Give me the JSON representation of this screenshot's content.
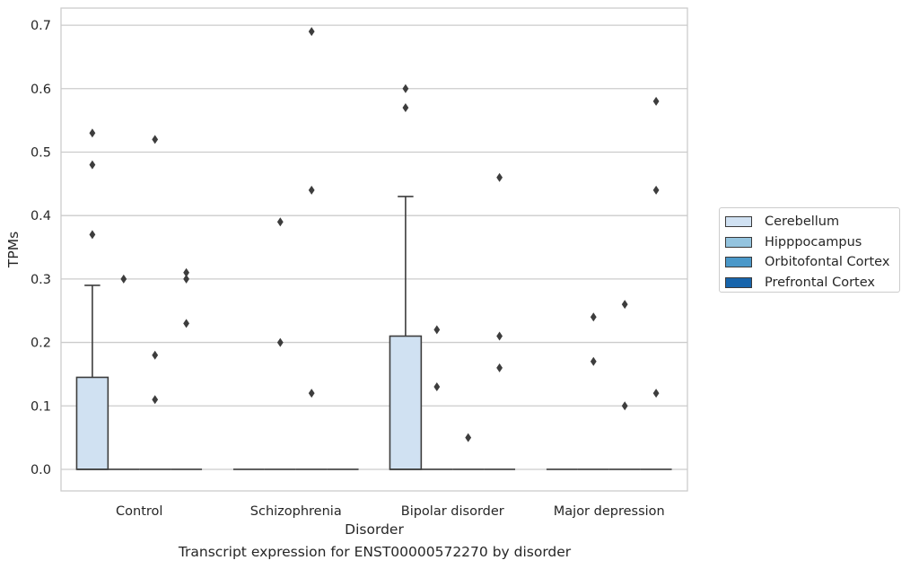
{
  "chart_data": {
    "type": "box",
    "title": "Transcript expression for ENST00000572270 by disorder",
    "xlabel": "Disorder",
    "ylabel": "TPMs",
    "ylim": [
      -0.034,
      0.727
    ],
    "yticks": [
      0.0,
      0.1,
      0.2,
      0.3,
      0.4,
      0.5,
      0.6,
      0.7
    ],
    "ytick_labels": [
      "0.0",
      "0.1",
      "0.2",
      "0.3",
      "0.4",
      "0.5",
      "0.6",
      "0.7"
    ],
    "grid": "horizontal",
    "legend_position": "right",
    "categories": [
      "Control",
      "Schizophrenia",
      "Bipolar disorder",
      "Major depression"
    ],
    "series": [
      {
        "name": "Cerebellum",
        "color": "#d0e1f2",
        "boxes": [
          {
            "q1": 0.0,
            "median": 0.0,
            "q3": 0.145,
            "whisker_low": 0.0,
            "whisker_high": 0.29,
            "outliers": [
              0.37,
              0.48,
              0.53
            ]
          },
          {
            "q1": 0.0,
            "median": 0.0,
            "q3": 0.0,
            "whisker_low": 0.0,
            "whisker_high": 0.0,
            "outliers": []
          },
          {
            "q1": 0.0,
            "median": 0.0,
            "q3": 0.21,
            "whisker_low": 0.0,
            "whisker_high": 0.43,
            "outliers": [
              0.57,
              0.6
            ]
          },
          {
            "q1": 0.0,
            "median": 0.0,
            "q3": 0.0,
            "whisker_low": 0.0,
            "whisker_high": 0.0,
            "outliers": []
          }
        ]
      },
      {
        "name": "Hipppocampus",
        "color": "#94c4df",
        "boxes": [
          {
            "q1": 0.0,
            "median": 0.0,
            "q3": 0.0,
            "whisker_low": 0.0,
            "whisker_high": 0.0,
            "outliers": [
              0.3
            ]
          },
          {
            "q1": 0.0,
            "median": 0.0,
            "q3": 0.0,
            "whisker_low": 0.0,
            "whisker_high": 0.0,
            "outliers": [
              0.2,
              0.39
            ]
          },
          {
            "q1": 0.0,
            "median": 0.0,
            "q3": 0.0,
            "whisker_low": 0.0,
            "whisker_high": 0.0,
            "outliers": [
              0.13,
              0.22
            ]
          },
          {
            "q1": 0.0,
            "median": 0.0,
            "q3": 0.0,
            "whisker_low": 0.0,
            "whisker_high": 0.0,
            "outliers": [
              0.17,
              0.24
            ]
          }
        ]
      },
      {
        "name": "Orbitofontal Cortex",
        "color": "#4a98c9",
        "boxes": [
          {
            "q1": 0.0,
            "median": 0.0,
            "q3": 0.0,
            "whisker_low": 0.0,
            "whisker_high": 0.0,
            "outliers": [
              0.11,
              0.18,
              0.52
            ]
          },
          {
            "q1": 0.0,
            "median": 0.0,
            "q3": 0.0,
            "whisker_low": 0.0,
            "whisker_high": 0.0,
            "outliers": [
              0.12,
              0.44,
              0.69
            ]
          },
          {
            "q1": 0.0,
            "median": 0.0,
            "q3": 0.0,
            "whisker_low": 0.0,
            "whisker_high": 0.0,
            "outliers": [
              0.05
            ]
          },
          {
            "q1": 0.0,
            "median": 0.0,
            "q3": 0.0,
            "whisker_low": 0.0,
            "whisker_high": 0.0,
            "outliers": [
              0.1,
              0.26
            ]
          }
        ]
      },
      {
        "name": "Prefrontal Cortex",
        "color": "#1764ab",
        "boxes": [
          {
            "q1": 0.0,
            "median": 0.0,
            "q3": 0.0,
            "whisker_low": 0.0,
            "whisker_high": 0.0,
            "outliers": [
              0.23,
              0.3,
              0.31
            ]
          },
          {
            "q1": 0.0,
            "median": 0.0,
            "q3": 0.0,
            "whisker_low": 0.0,
            "whisker_high": 0.0,
            "outliers": []
          },
          {
            "q1": 0.0,
            "median": 0.0,
            "q3": 0.0,
            "whisker_low": 0.0,
            "whisker_high": 0.0,
            "outliers": [
              0.16,
              0.21,
              0.46
            ]
          },
          {
            "q1": 0.0,
            "median": 0.0,
            "q3": 0.0,
            "whisker_low": 0.0,
            "whisker_high": 0.0,
            "outliers": [
              0.12,
              0.44,
              0.58
            ]
          }
        ]
      }
    ]
  }
}
